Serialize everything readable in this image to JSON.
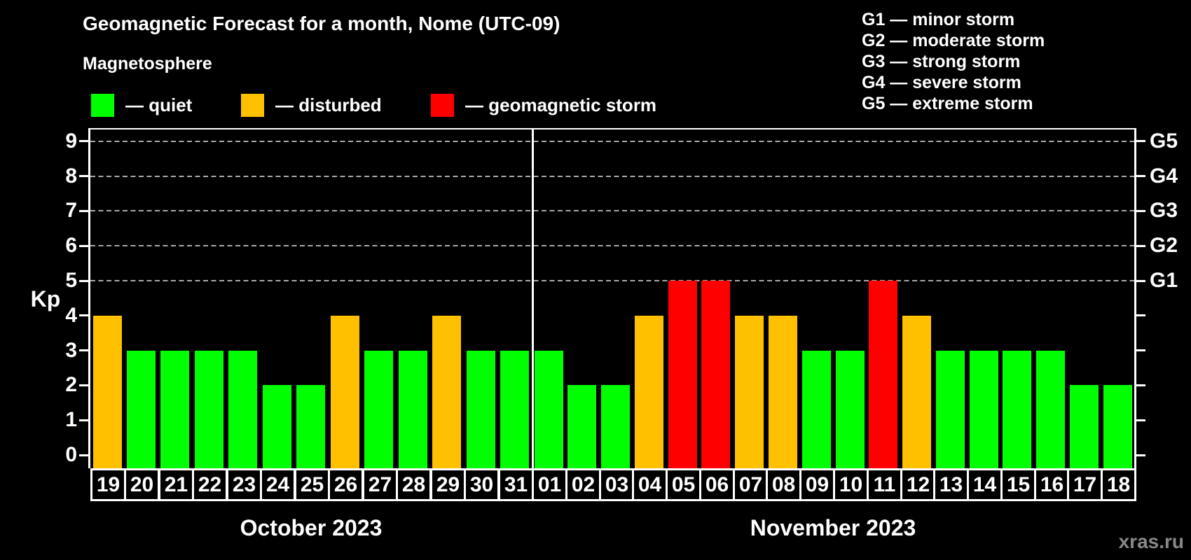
{
  "title": "Geomagnetic Forecast for a month, Nome (UTC-09)",
  "subtitle": "Magnetosphere",
  "legend": {
    "items": [
      {
        "key": "quiet",
        "label": "— quiet",
        "color": "#00ff00"
      },
      {
        "key": "disturbed",
        "label": "— disturbed",
        "color": "#ffc000"
      },
      {
        "key": "storm",
        "label": "— geomagnetic storm",
        "color": "#ff0000"
      }
    ]
  },
  "g_legend": [
    "G1 — minor storm",
    "G2 — moderate storm",
    "G3 — strong storm",
    "G4 — severe storm",
    "G5 — extreme storm"
  ],
  "watermark": "xras.ru",
  "chart_data": {
    "type": "bar",
    "title": "Geomagnetic Forecast for a month, Nome (UTC-09)",
    "xlabel": "",
    "ylabel": "Kp",
    "ylim": [
      0,
      9.5
    ],
    "yticks": [
      0,
      1,
      2,
      3,
      4,
      5,
      6,
      7,
      8,
      9
    ],
    "grid": "horizontal dashed lines at Kp 5,6,7,8,9",
    "legend_position": "top-left",
    "level_colors": {
      "quiet": "#00ff00",
      "disturbed": "#ffc000",
      "storm": "#ff0000"
    },
    "right_axis_labels": [
      {
        "text": "G1",
        "kp": 5
      },
      {
        "text": "G2",
        "kp": 6
      },
      {
        "text": "G3",
        "kp": 7
      },
      {
        "text": "G4",
        "kp": 8
      },
      {
        "text": "G5",
        "kp": 9
      }
    ],
    "months": [
      {
        "label": "October 2023",
        "days": [
          {
            "date": "19",
            "kp": 4,
            "level": "disturbed"
          },
          {
            "date": "20",
            "kp": 3,
            "level": "quiet"
          },
          {
            "date": "21",
            "kp": 3,
            "level": "quiet"
          },
          {
            "date": "22",
            "kp": 3,
            "level": "quiet"
          },
          {
            "date": "23",
            "kp": 3,
            "level": "quiet"
          },
          {
            "date": "24",
            "kp": 2,
            "level": "quiet"
          },
          {
            "date": "25",
            "kp": 2,
            "level": "quiet"
          },
          {
            "date": "26",
            "kp": 4,
            "level": "disturbed"
          },
          {
            "date": "27",
            "kp": 3,
            "level": "quiet"
          },
          {
            "date": "28",
            "kp": 3,
            "level": "quiet"
          },
          {
            "date": "29",
            "kp": 4,
            "level": "disturbed"
          },
          {
            "date": "30",
            "kp": 3,
            "level": "quiet"
          },
          {
            "date": "31",
            "kp": 3,
            "level": "quiet"
          }
        ]
      },
      {
        "label": "November 2023",
        "days": [
          {
            "date": "01",
            "kp": 3,
            "level": "quiet"
          },
          {
            "date": "02",
            "kp": 2,
            "level": "quiet"
          },
          {
            "date": "03",
            "kp": 2,
            "level": "quiet"
          },
          {
            "date": "04",
            "kp": 4,
            "level": "disturbed"
          },
          {
            "date": "05",
            "kp": 5,
            "level": "storm"
          },
          {
            "date": "06",
            "kp": 5,
            "level": "storm"
          },
          {
            "date": "07",
            "kp": 4,
            "level": "disturbed"
          },
          {
            "date": "08",
            "kp": 4,
            "level": "disturbed"
          },
          {
            "date": "09",
            "kp": 3,
            "level": "quiet"
          },
          {
            "date": "10",
            "kp": 3,
            "level": "quiet"
          },
          {
            "date": "11",
            "kp": 5,
            "level": "storm"
          },
          {
            "date": "12",
            "kp": 4,
            "level": "disturbed"
          },
          {
            "date": "13",
            "kp": 3,
            "level": "quiet"
          },
          {
            "date": "14",
            "kp": 3,
            "level": "quiet"
          },
          {
            "date": "15",
            "kp": 3,
            "level": "quiet"
          },
          {
            "date": "16",
            "kp": 3,
            "level": "quiet"
          },
          {
            "date": "17",
            "kp": 2,
            "level": "quiet"
          },
          {
            "date": "18",
            "kp": 2,
            "level": "quiet"
          }
        ]
      }
    ]
  }
}
